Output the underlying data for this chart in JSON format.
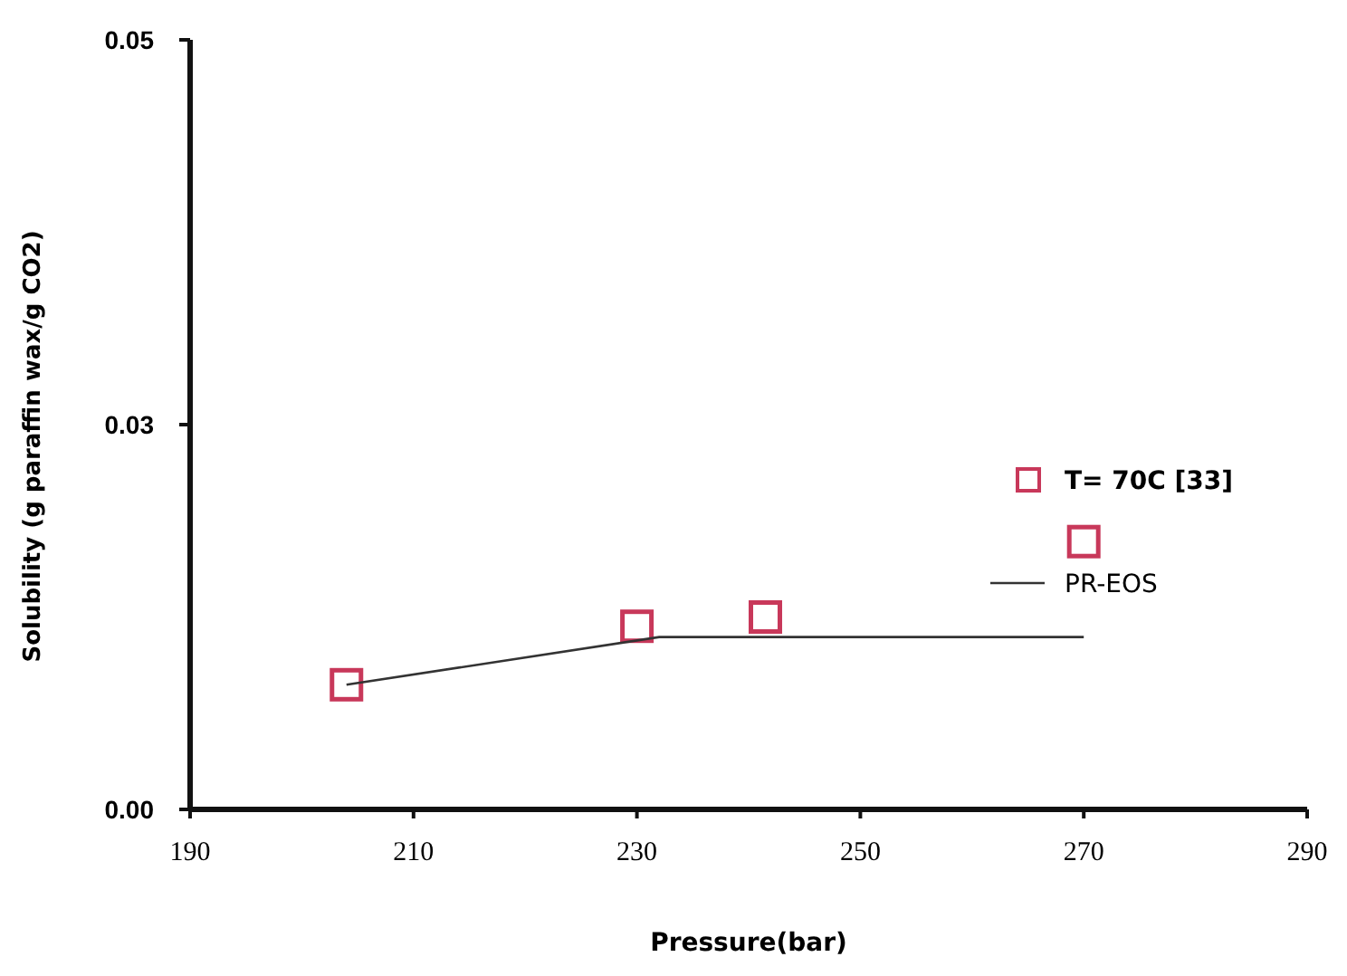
{
  "chart_data": {
    "type": "scatter",
    "xlabel": "Pressure(bar)",
    "ylabel": "Solubility (g paraffin wax/g CO2)",
    "xlim": [
      190,
      290
    ],
    "xticks": [
      190,
      210,
      230,
      250,
      270,
      290
    ],
    "ylim": [
      0,
      0.05
    ],
    "yticks": [
      {
        "value": 0,
        "label": "0.00"
      },
      {
        "value": 0.025,
        "label": "0.03"
      },
      {
        "value": 0.05,
        "label": "0.05"
      }
    ],
    "grid": false,
    "legend": "right",
    "series": [
      {
        "name": "T= 70C [33]",
        "marker": "square",
        "color": "#c8385a",
        "x": [
          204,
          230,
          241.5,
          270
        ],
        "values": [
          0.0081,
          0.0119,
          0.0125,
          0.0174
        ]
      },
      {
        "name": "PR-EOS",
        "type": "line",
        "marker": "none",
        "line_style": "solid",
        "color": "#333333",
        "x": [
          204,
          232,
          270
        ],
        "values": [
          0.0081,
          0.0112,
          0.0112
        ]
      }
    ]
  }
}
